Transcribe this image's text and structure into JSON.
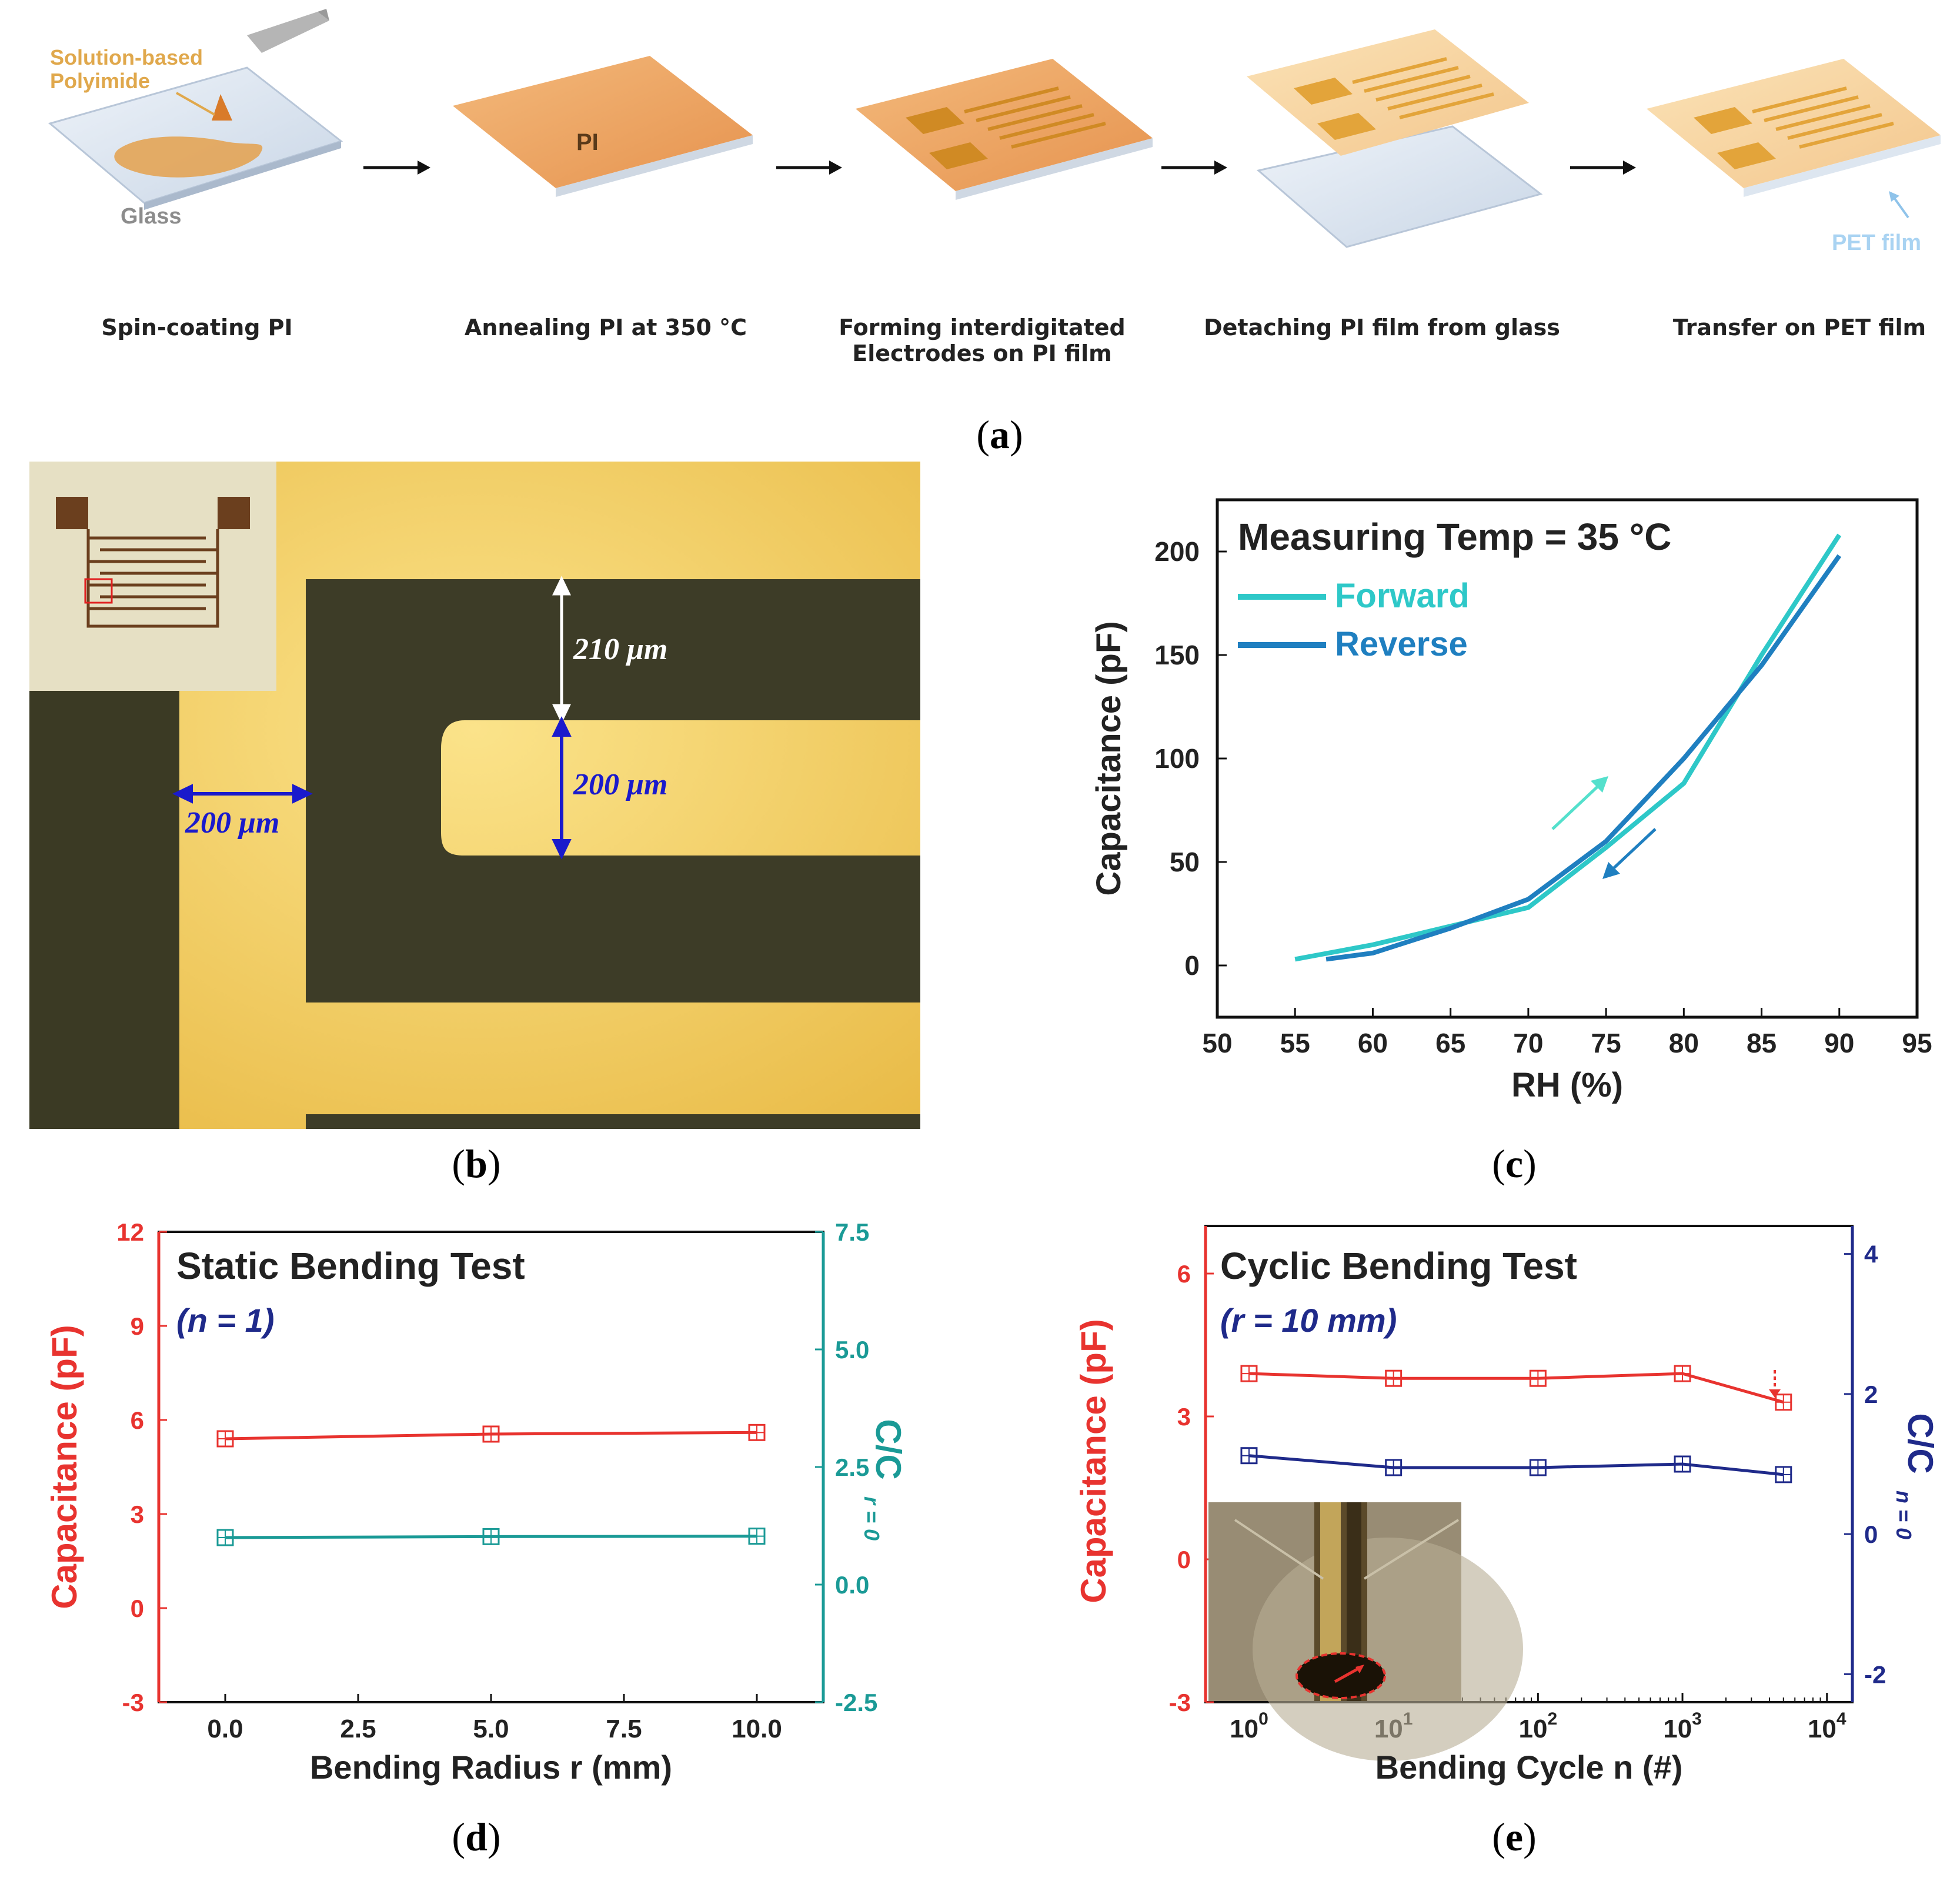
{
  "panel_a": {
    "caption": "a",
    "glass_label": "Glass",
    "solution_label": "Solution-based Polyimide",
    "pi_label": "PI",
    "pet_label": "PET film",
    "steps": [
      {
        "label": "Spin-coating PI"
      },
      {
        "label": "Annealing PI at 350 °C"
      },
      {
        "label": "Forming interdigitated Electrodes on PI film"
      },
      {
        "label": "Detaching PI film from glass"
      },
      {
        "label": "Transfer on PET film"
      }
    ]
  },
  "panel_b": {
    "caption": "b",
    "dim_gap_top": "210 μm",
    "dim_finger": "200 μm",
    "dim_left": "200 μm"
  },
  "panel_c": {
    "caption": "c",
    "chart_data": {
      "type": "line",
      "title": "Measuring Temp = 35 °C",
      "xlabel": "RH (%)",
      "ylabel": "Capacitance (pF)",
      "xlim": [
        50,
        95
      ],
      "ylim": [
        -25,
        225
      ],
      "x_ticks": [
        50,
        55,
        60,
        65,
        70,
        75,
        80,
        85,
        90,
        95
      ],
      "y_ticks": [
        0,
        50,
        100,
        150,
        200
      ],
      "series": [
        {
          "name": "Forward",
          "color": "#2ec8c8",
          "x": [
            55,
            60,
            65,
            70,
            75,
            80,
            85,
            90
          ],
          "y": [
            3,
            10,
            19,
            28,
            57,
            88,
            150,
            208
          ]
        },
        {
          "name": "Reverse",
          "color": "#1f7fc0",
          "x": [
            57,
            60,
            65,
            70,
            75,
            80,
            85,
            90
          ],
          "y": [
            3,
            6,
            18,
            32,
            60,
            100,
            145,
            198
          ]
        }
      ]
    }
  },
  "panel_d": {
    "caption": "d",
    "chart_data": {
      "type": "line",
      "title": "Static Bending Test",
      "subtitle": "(n = 1)",
      "xlabel": "Bending Radius r (mm)",
      "ylabel": "Capacitance (pF)",
      "y2label": "C/C",
      "y2label_sub": "r = 0",
      "xlim": [
        -1.25,
        11.25
      ],
      "ylim": [
        -3,
        12
      ],
      "y2lim": [
        -2.5,
        7.5
      ],
      "x_ticks": [
        "0.0",
        "2.5",
        "5.0",
        "7.5",
        "10.0"
      ],
      "y_ticks": [
        "-3",
        "0",
        "3",
        "6",
        "9",
        "12"
      ],
      "y2_ticks": [
        "-2.5",
        "0.0",
        "2.5",
        "5.0",
        "7.5"
      ],
      "series": [
        {
          "name": "Capacitance",
          "axis": "left",
          "color": "#e8332f",
          "x": [
            0,
            5,
            10
          ],
          "y": [
            5.4,
            5.55,
            5.6
          ]
        },
        {
          "name": "C/C r=0",
          "axis": "right",
          "color": "#1a9a96",
          "x": [
            0,
            5,
            10
          ],
          "y": [
            1.0,
            1.02,
            1.03
          ]
        }
      ]
    }
  },
  "panel_e": {
    "caption": "e",
    "chart_data": {
      "type": "line",
      "title": "Cyclic Bending Test",
      "subtitle": "(r = 10 mm)",
      "xlabel": "Bending Cycle n (#)",
      "ylabel": "Capacitance (pF)",
      "y2label": "C/C",
      "y2label_sub": "n = 0",
      "xscale": "log",
      "xlim": [
        0.5,
        15000
      ],
      "ylim": [
        -3,
        7
      ],
      "y2lim": [
        -2.4,
        4.4
      ],
      "x_ticks": [
        "10^0",
        "10^1",
        "10^2",
        "10^3",
        "10^4"
      ],
      "y_ticks": [
        "-3",
        "0",
        "3",
        "6"
      ],
      "y2_ticks": [
        "-2",
        "0",
        "2",
        "4"
      ],
      "series": [
        {
          "name": "Capacitance",
          "axis": "left",
          "color": "#e8332f",
          "x": [
            1,
            10,
            100,
            1000,
            5000
          ],
          "y": [
            3.9,
            3.8,
            3.8,
            3.9,
            3.3
          ]
        },
        {
          "name": "C/C n=0",
          "axis": "right",
          "color": "#1f2a8a",
          "x": [
            1,
            10,
            100,
            1000,
            5000
          ],
          "y": [
            1.12,
            0.95,
            0.95,
            1.0,
            0.85
          ]
        }
      ]
    }
  }
}
